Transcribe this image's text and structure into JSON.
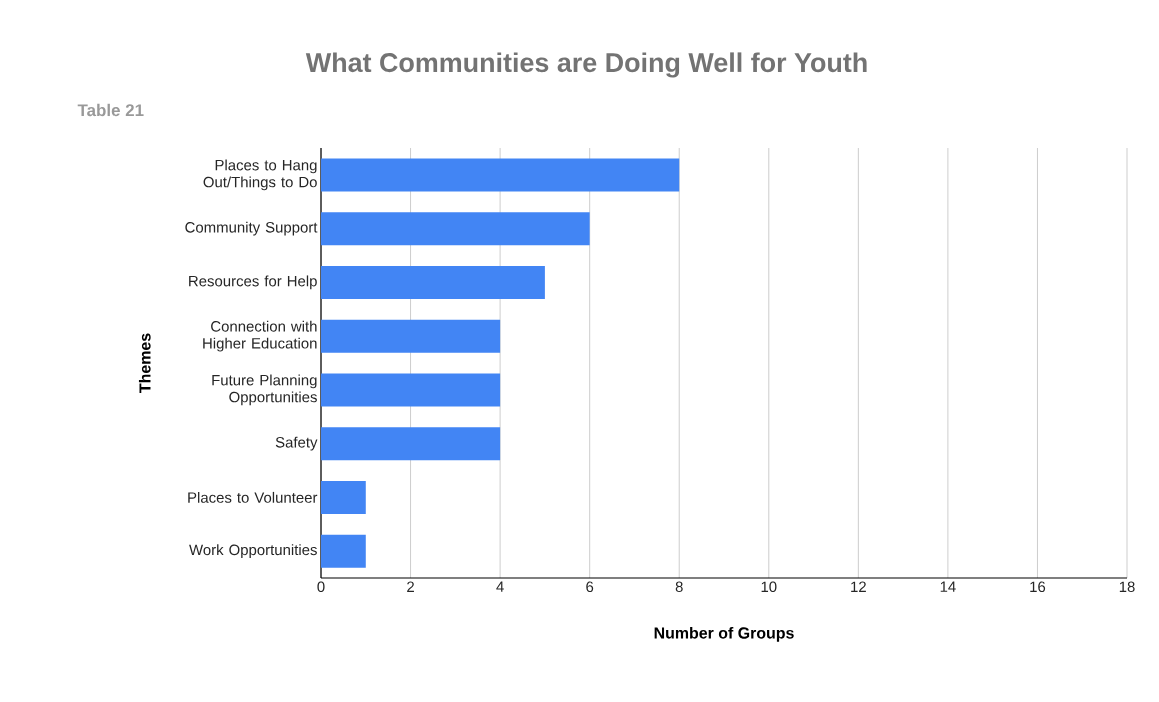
{
  "chart_data": {
    "type": "bar",
    "orientation": "horizontal",
    "title": "What Communities are Doing Well for Youth",
    "subtitle": "Table 21",
    "xlabel": "Number of Groups",
    "ylabel": "Themes",
    "categories": [
      "Places to Hang Out/Things to Do",
      "Community Support",
      "Resources for Help",
      "Connection with Higher Education",
      "Future Planning Opportunities",
      "Safety",
      "Places to Volunteer",
      "Work Opportunities"
    ],
    "values": [
      8,
      6,
      5,
      4,
      4,
      4,
      1,
      1
    ],
    "color": "#4285f4",
    "xlim": [
      0,
      18
    ],
    "xticks": [
      0,
      2,
      4,
      6,
      8,
      10,
      12,
      14,
      16,
      18
    ],
    "grid": "x"
  }
}
